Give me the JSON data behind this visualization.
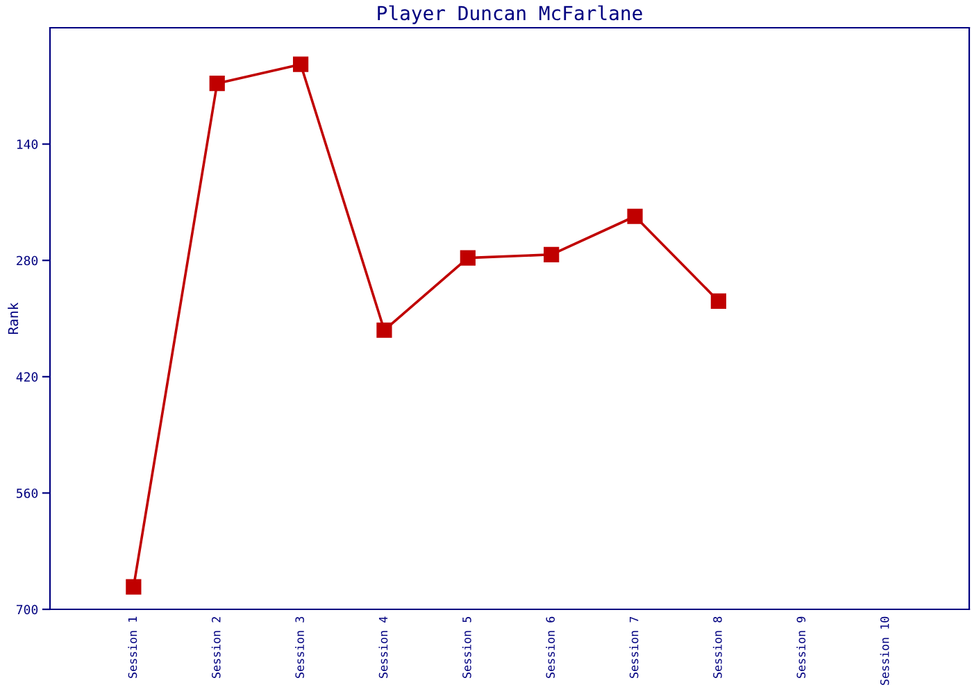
{
  "chart_data": {
    "type": "line",
    "title": "Player Duncan McFarlane",
    "ylabel": "Rank",
    "categories": [
      "Session 1",
      "Session 2",
      "Session 3",
      "Session 4",
      "Session 5",
      "Session 6",
      "Session 7",
      "Session 8",
      "Session 9",
      "Session 10"
    ],
    "series": [
      {
        "color": "#c00000",
        "values": [
          673,
          67,
          44,
          364,
          277,
          273,
          227,
          329,
          null,
          null
        ]
      }
    ],
    "ylim": [
      700,
      0
    ],
    "yticks": [
      140,
      280,
      420,
      560,
      700
    ],
    "grid": false,
    "marker": "square",
    "line_style": "solid"
  }
}
